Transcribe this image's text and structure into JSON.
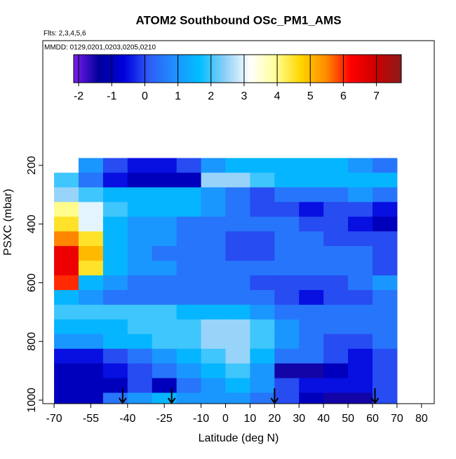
{
  "chart_data": {
    "type": "curtain",
    "title": "ATOM2 Southbound OSc_PM1_AMS",
    "flights": "Flts: 2,3,4,5,6",
    "dates": "MMDD: 0129,0201,0203,0205,0210",
    "xlabel": "Latitude (deg N)",
    "ylabel": "PSXC (mbar)",
    "xlim": [
      -74.6,
      85.2
    ],
    "ylim": [
      1012,
      -225
    ],
    "xticks": [
      -70,
      -55,
      -40,
      -25,
      -10,
      0,
      10,
      20,
      30,
      40,
      50,
      60,
      70,
      80
    ],
    "yticks": [
      200,
      400,
      600,
      800,
      1000
    ],
    "lat_edges": [
      -70,
      -60,
      -50,
      -40,
      -30,
      -20,
      -10,
      0,
      10,
      20,
      30,
      40,
      50,
      60,
      70
    ],
    "pressure_edges": [
      175,
      225,
      275,
      325,
      375,
      425,
      475,
      525,
      575,
      625,
      675,
      725,
      775,
      825,
      875,
      925,
      975,
      1012
    ],
    "values": [
      [
        null,
        1,
        0,
        -0.5,
        -0.5,
        0,
        1,
        1.5,
        1.5,
        1.5,
        1.5,
        1.5,
        1,
        0.5
      ],
      [
        2,
        0.5,
        -0.5,
        -1,
        -1,
        -1,
        2.5,
        2.5,
        2,
        1.5,
        1.5,
        1.5,
        1.5,
        1.5
      ],
      [
        2.5,
        2,
        1.5,
        1.5,
        1.5,
        1.5,
        1,
        0.5,
        0,
        0.5,
        0.5,
        0.5,
        1,
        0.5
      ],
      [
        4,
        3,
        2,
        1.5,
        1.5,
        1.5,
        1,
        0.5,
        0,
        0,
        -0.5,
        0,
        0,
        -0.5
      ],
      [
        4.5,
        3,
        1.5,
        1,
        1,
        0.5,
        0.5,
        0.5,
        0.5,
        0.5,
        0,
        0,
        -0.5,
        -1
      ],
      [
        5.5,
        4.5,
        1.5,
        1,
        1,
        0.5,
        0.5,
        0,
        0,
        0.5,
        0.5,
        0,
        0,
        0
      ],
      [
        6.5,
        5,
        1.5,
        1,
        0.5,
        0.5,
        0.5,
        0,
        0,
        0.5,
        0.5,
        0.5,
        0.5,
        0
      ],
      [
        6.5,
        4.5,
        1.5,
        1,
        1,
        0.5,
        0.5,
        0.5,
        0.5,
        0.5,
        0.5,
        0.5,
        0.5,
        0
      ],
      [
        6,
        1.5,
        1,
        0.5,
        0.5,
        0.5,
        0.5,
        0.5,
        0,
        0,
        0,
        0,
        0.5,
        1
      ],
      [
        1.5,
        1,
        0.5,
        0.5,
        0.5,
        0.5,
        0.5,
        0.5,
        0.5,
        0,
        -0.5,
        0,
        0,
        0.5
      ],
      [
        2,
        2,
        2,
        2,
        2,
        1.5,
        1.5,
        1.5,
        1,
        0.5,
        0.5,
        0.5,
        0.5,
        0.5
      ],
      [
        1.5,
        1.5,
        1.5,
        2,
        2,
        2,
        2.5,
        2.5,
        2,
        1,
        0.5,
        0.5,
        0.5,
        0.5
      ],
      [
        1,
        1,
        1.5,
        1.5,
        2,
        2,
        2.5,
        2.5,
        2,
        1,
        0.5,
        0,
        0,
        0.5
      ],
      [
        -0.5,
        -0.5,
        0,
        0.5,
        1,
        1.5,
        2,
        2.5,
        1.5,
        0.5,
        0.5,
        0,
        -0.5,
        0
      ],
      [
        -1,
        -1,
        -0.5,
        0,
        0.5,
        1,
        1.5,
        2,
        1,
        -1.5,
        -1.5,
        -1,
        -0.5,
        0
      ],
      [
        -1,
        -1,
        -1,
        0,
        -1,
        0.5,
        1,
        1.5,
        1,
        0,
        -0.5,
        -0.5,
        -0.5,
        0
      ],
      [
        -1,
        -1,
        0.5,
        1,
        1.5,
        1,
        1,
        1,
        0.5,
        0,
        -1,
        -1.5,
        -1.5,
        0
      ]
    ],
    "clim": [
      -2.15,
      7.75
    ],
    "cticks": [
      -2,
      -1,
      0,
      1,
      2,
      3,
      4,
      5,
      6,
      7
    ],
    "colormap": [
      "#7a1cf0",
      "#00009a",
      "#0000dd",
      "#2f5cf5",
      "#1e90ff",
      "#00bfff",
      "#8ccff8",
      "#ffffff",
      "#ffff99",
      "#ffd700",
      "#ff8c00",
      "#ff0000",
      "#cc0000",
      "#8b1a1a"
    ],
    "arrows_lat": [
      -42,
      -22,
      20,
      61
    ]
  }
}
